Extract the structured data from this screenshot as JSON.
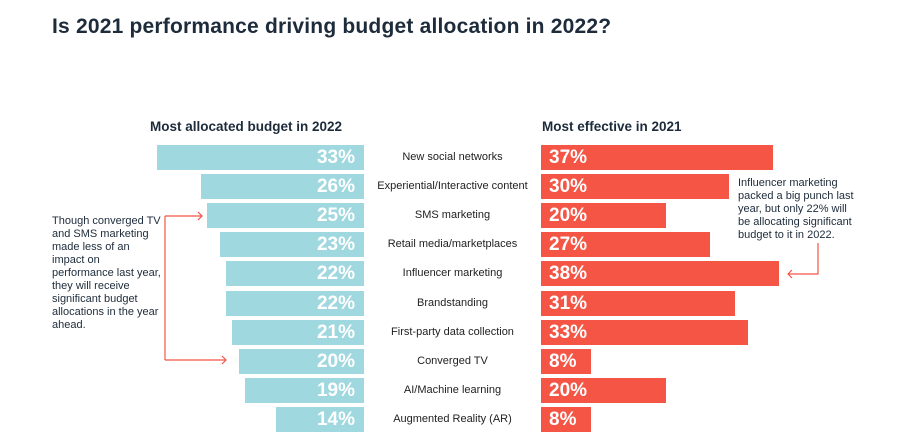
{
  "chart_data": {
    "type": "bar",
    "title": "Is 2021 performance driving budget allocation in 2022?",
    "categories": [
      "New social networks",
      "Experiential/Interactive content",
      "SMS marketing",
      "Retail media/marketplaces",
      "Influencer marketing",
      "Brandstanding",
      "First-party data collection",
      "Converged TV",
      "AI/Machine learning",
      "Augmented Reality (AR)"
    ],
    "series": [
      {
        "name": "Most allocated budget in 2022",
        "values": [
          33,
          26,
          25,
          23,
          22,
          22,
          21,
          20,
          19,
          14
        ],
        "color": "#a0d8e0"
      },
      {
        "name": "Most effective in 2021",
        "values": [
          37,
          30,
          20,
          27,
          38,
          31,
          33,
          8,
          20,
          8
        ],
        "color": "#f55545"
      }
    ],
    "value_suffix": "%",
    "annotations": [
      "Though converged TV and SMS marketing made less of an impact on performance last year, they will receive significant budget allocations in the year ahead.",
      "Influencer marketing packed a big punch last year, but only 22% will be allocating significant budget to it in 2022."
    ]
  }
}
